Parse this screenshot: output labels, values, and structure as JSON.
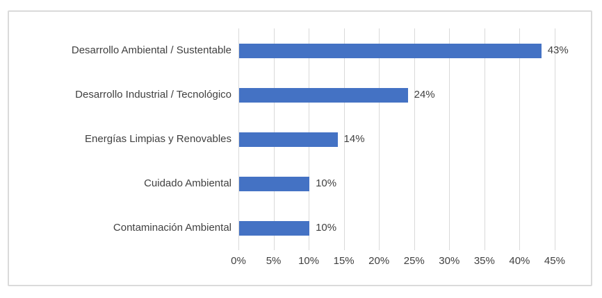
{
  "chart_data": {
    "type": "bar",
    "orientation": "horizontal",
    "title": "",
    "xlabel": "",
    "ylabel": "",
    "categories": [
      "Desarrollo Ambiental / Sustentable",
      "Desarrollo Industrial / Tecnológico",
      "Energías Limpias y Renovables",
      "Cuidado Ambiental",
      "Contaminación Ambiental"
    ],
    "values": [
      43,
      24,
      14,
      10,
      10
    ],
    "data_labels": [
      "43%",
      "24%",
      "14%",
      "10%",
      "10%"
    ],
    "xlim": [
      0,
      45
    ],
    "x_tick_values": [
      0,
      5,
      10,
      15,
      20,
      25,
      30,
      35,
      40,
      45
    ],
    "x_ticks": [
      "0%",
      "5%",
      "10%",
      "15%",
      "20%",
      "25%",
      "30%",
      "35%",
      "40%",
      "45%"
    ],
    "grid": "vertical-gridlines-on",
    "legend": "none",
    "bar_color": "#4472c4",
    "text_color": "#404040",
    "gridline_color": "#d9d9d9",
    "frame_border_color": "#dadada",
    "background_color": "#ffffff"
  }
}
